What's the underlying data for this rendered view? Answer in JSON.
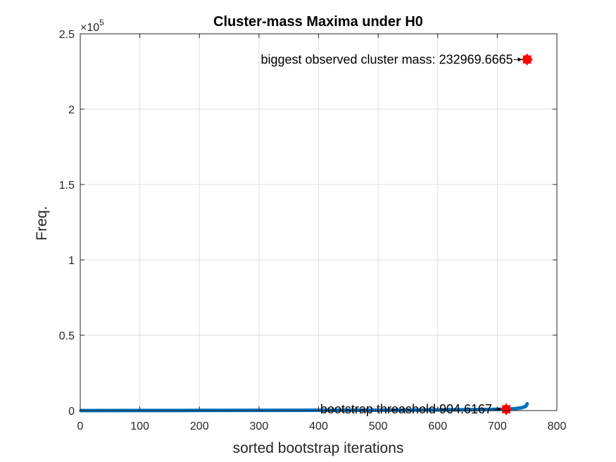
{
  "chart_data": {
    "type": "line",
    "title": "Cluster-mass Maxima under H0",
    "xlabel": "sorted bootstrap iterations",
    "ylabel": "Freq.",
    "xlim": [
      0,
      800
    ],
    "ylim": [
      0,
      250000
    ],
    "x_ticks": [
      0,
      100,
      200,
      300,
      400,
      500,
      600,
      700,
      800
    ],
    "x_tick_labels": [
      "0",
      "100",
      "200",
      "300",
      "400",
      "500",
      "600",
      "700",
      "800"
    ],
    "y_ticks": [
      0,
      50000,
      100000,
      150000,
      200000,
      250000
    ],
    "y_tick_labels": [
      "0",
      "0.5",
      "1",
      "1.5",
      "2",
      "2.5"
    ],
    "y_exponent_base": "×10",
    "y_exponent_power": "5",
    "grid": true,
    "series": [
      {
        "color": "#0072BD",
        "x": [
          1,
          100,
          200,
          300,
          400,
          500,
          600,
          650,
          700,
          715,
          730,
          740,
          745,
          748,
          750
        ],
        "y": [
          0,
          40,
          90,
          150,
          220,
          320,
          460,
          600,
          820,
          905,
          1300,
          1800,
          2400,
          3000,
          4500
        ]
      }
    ],
    "markers": [
      {
        "x": 750,
        "y": 232969.6665,
        "color": "#FF0000"
      },
      {
        "x": 715,
        "y": 904.6167,
        "color": "#FF0000"
      }
    ],
    "annotations": [
      {
        "text": "biggest observed cluster mass: 232969.6665",
        "x": 750,
        "y": 232969.6665
      },
      {
        "text": "bootstrap threashold 904.6167",
        "x": 715,
        "y": 904.6167
      }
    ]
  }
}
